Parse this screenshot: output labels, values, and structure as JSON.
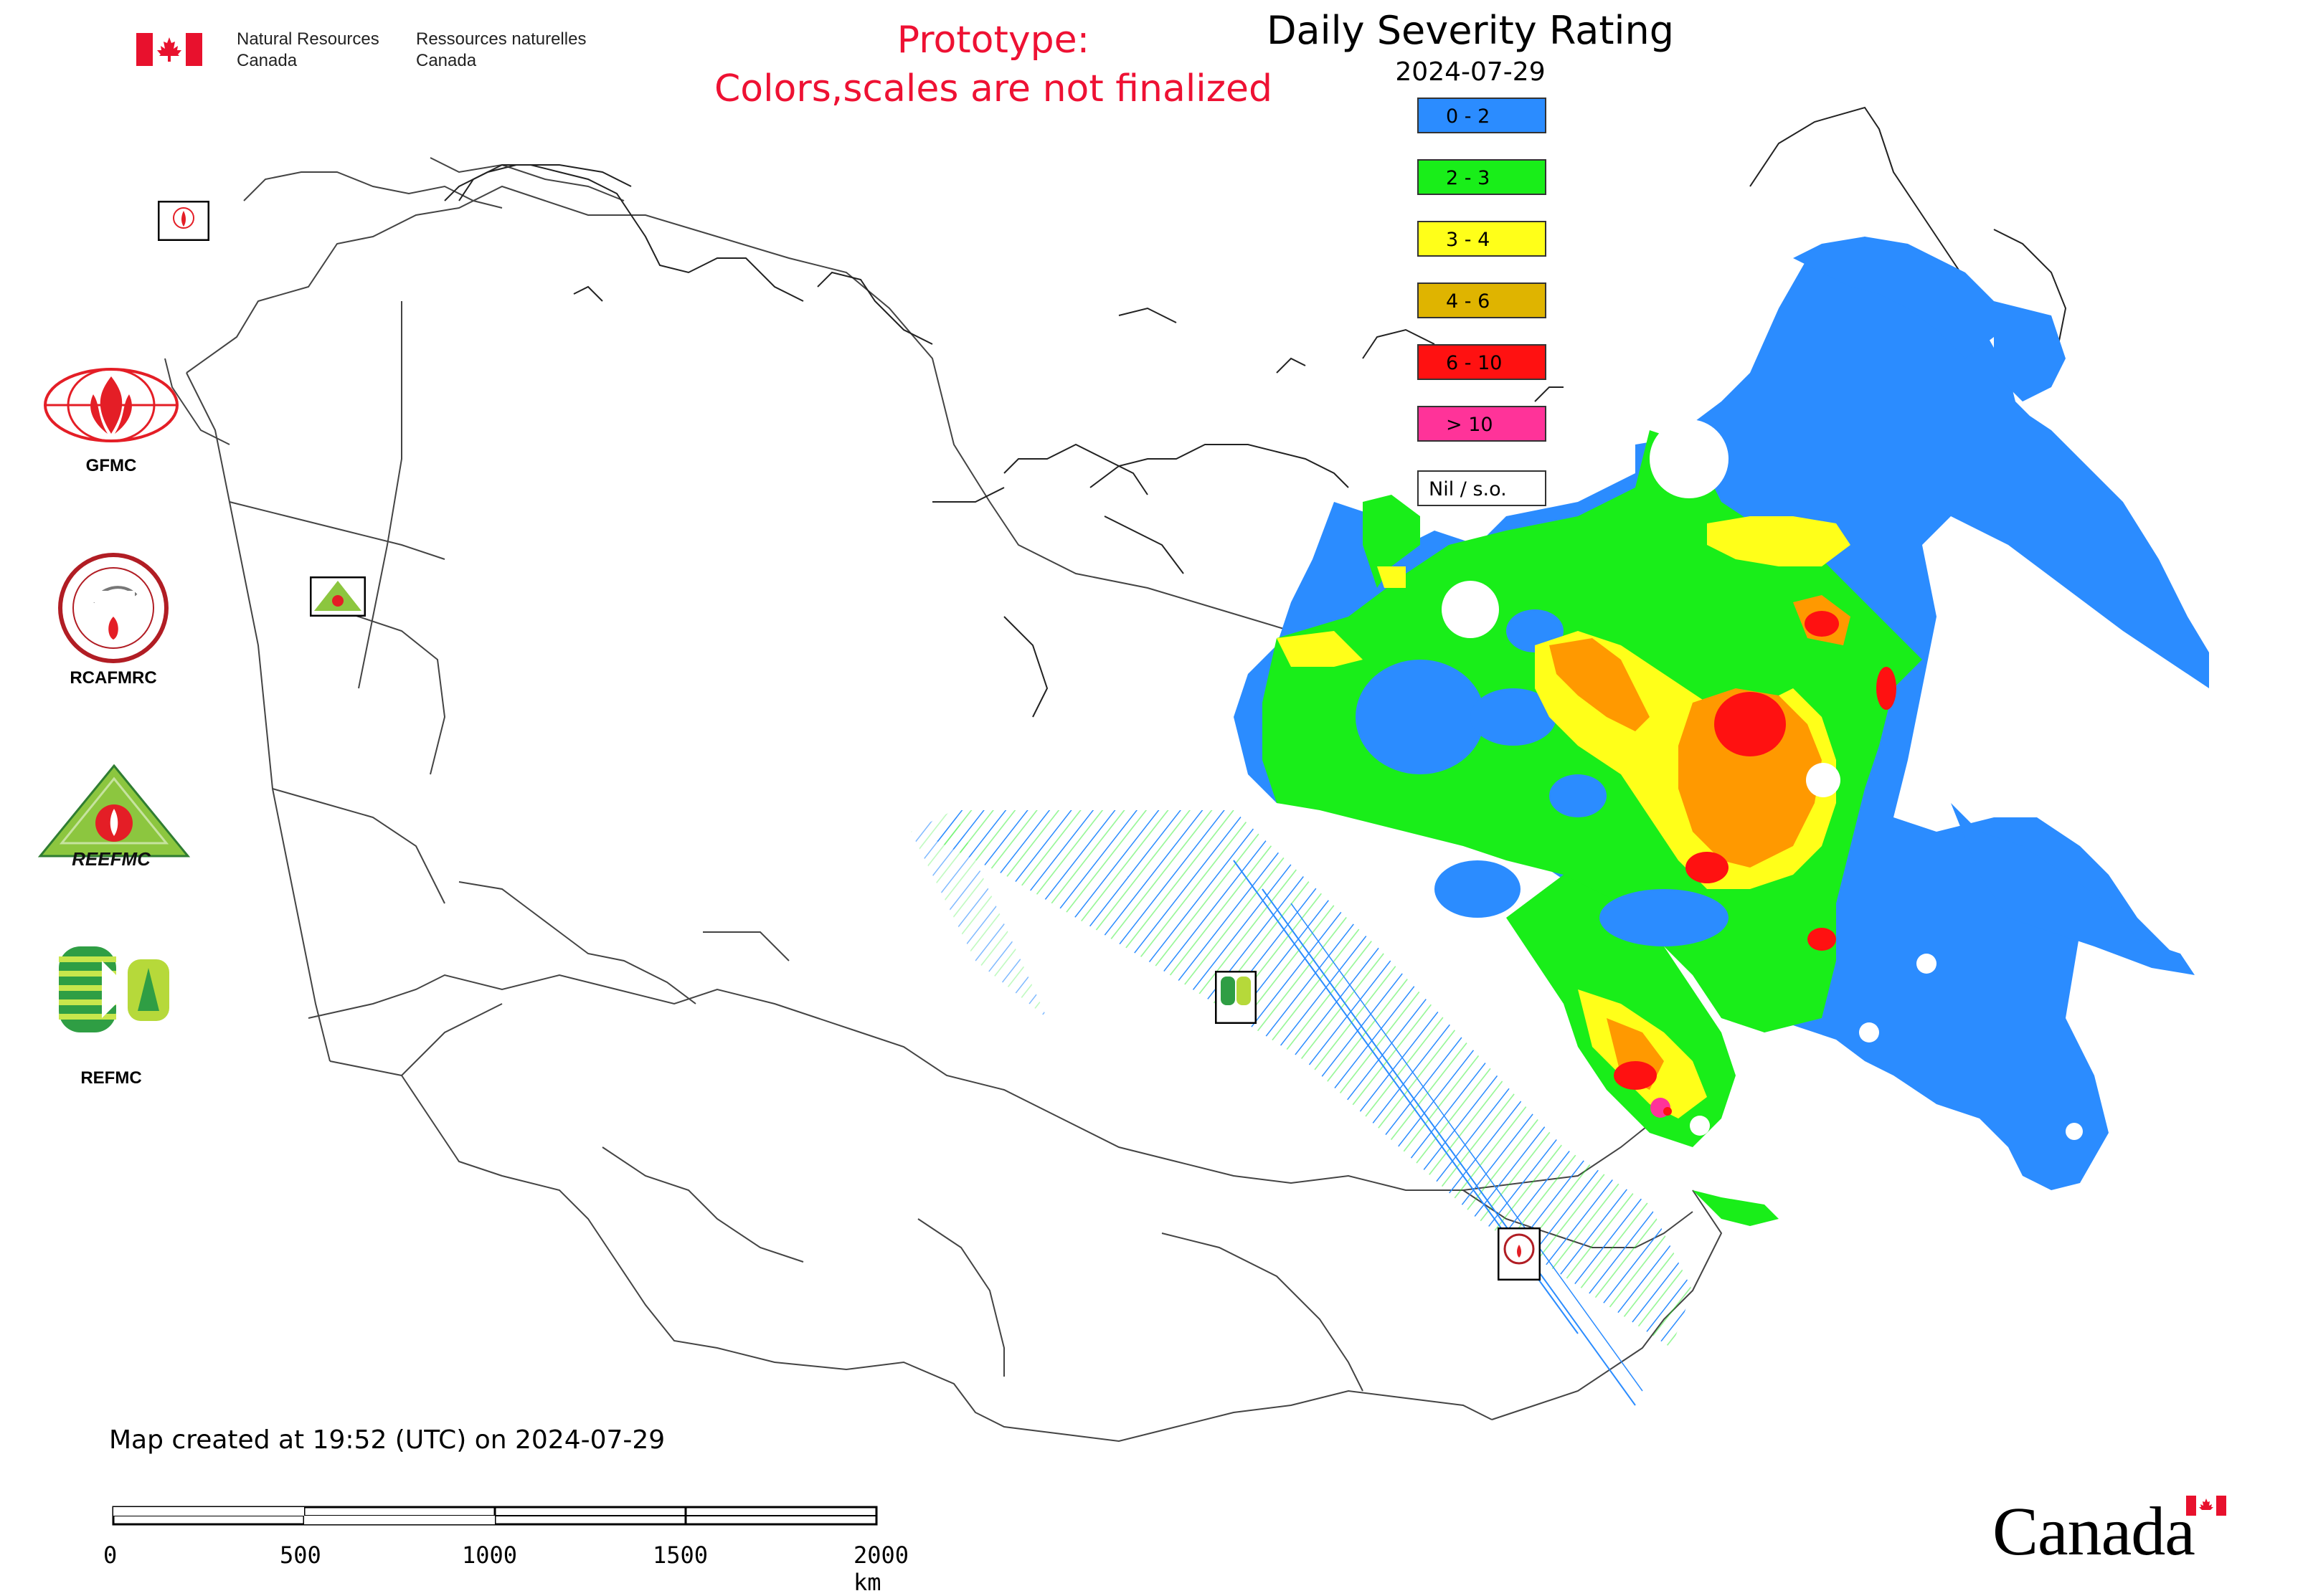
{
  "header": {
    "org_en_line1": "Natural Resources",
    "org_en_line2": "Canada",
    "org_fr_line1": "Ressources naturelles",
    "org_fr_line2": "Canada",
    "prototype_line1": "Prototype:",
    "prototype_line2": "Colors,scales are not finalized"
  },
  "map": {
    "title": "Daily Severity Rating",
    "date": "2024-07-29",
    "created_note": "Map created at 19:52 (UTC) on 2024-07-29",
    "wordmark": "Canada"
  },
  "legend": [
    {
      "label": "0 - 2",
      "color": "#2b8cff"
    },
    {
      "label": "2 - 3",
      "color": "#19ee19"
    },
    {
      "label": "3 - 4",
      "color": "#ffff19"
    },
    {
      "label": "4 - 6",
      "color": "#dfb400"
    },
    {
      "label": "6 - 10",
      "color": "#ff1111"
    },
    {
      "label": "> 10",
      "color": "#ff3399"
    },
    {
      "label": "Nil / s.o.",
      "color": "#ffffff"
    }
  ],
  "logos": {
    "gfmc": "GFMC",
    "rcafmrc": "RCAFMRC",
    "reefmc": "REFMC",
    "reefmc_badge": "REEFMC"
  },
  "scale_bar": {
    "ticks": [
      "0",
      "500",
      "1000",
      "1500",
      "2000 km"
    ]
  },
  "colors": {
    "prototype_text": "#ee1133",
    "border_lines": "#444444",
    "flag_red": "#e8112d"
  }
}
